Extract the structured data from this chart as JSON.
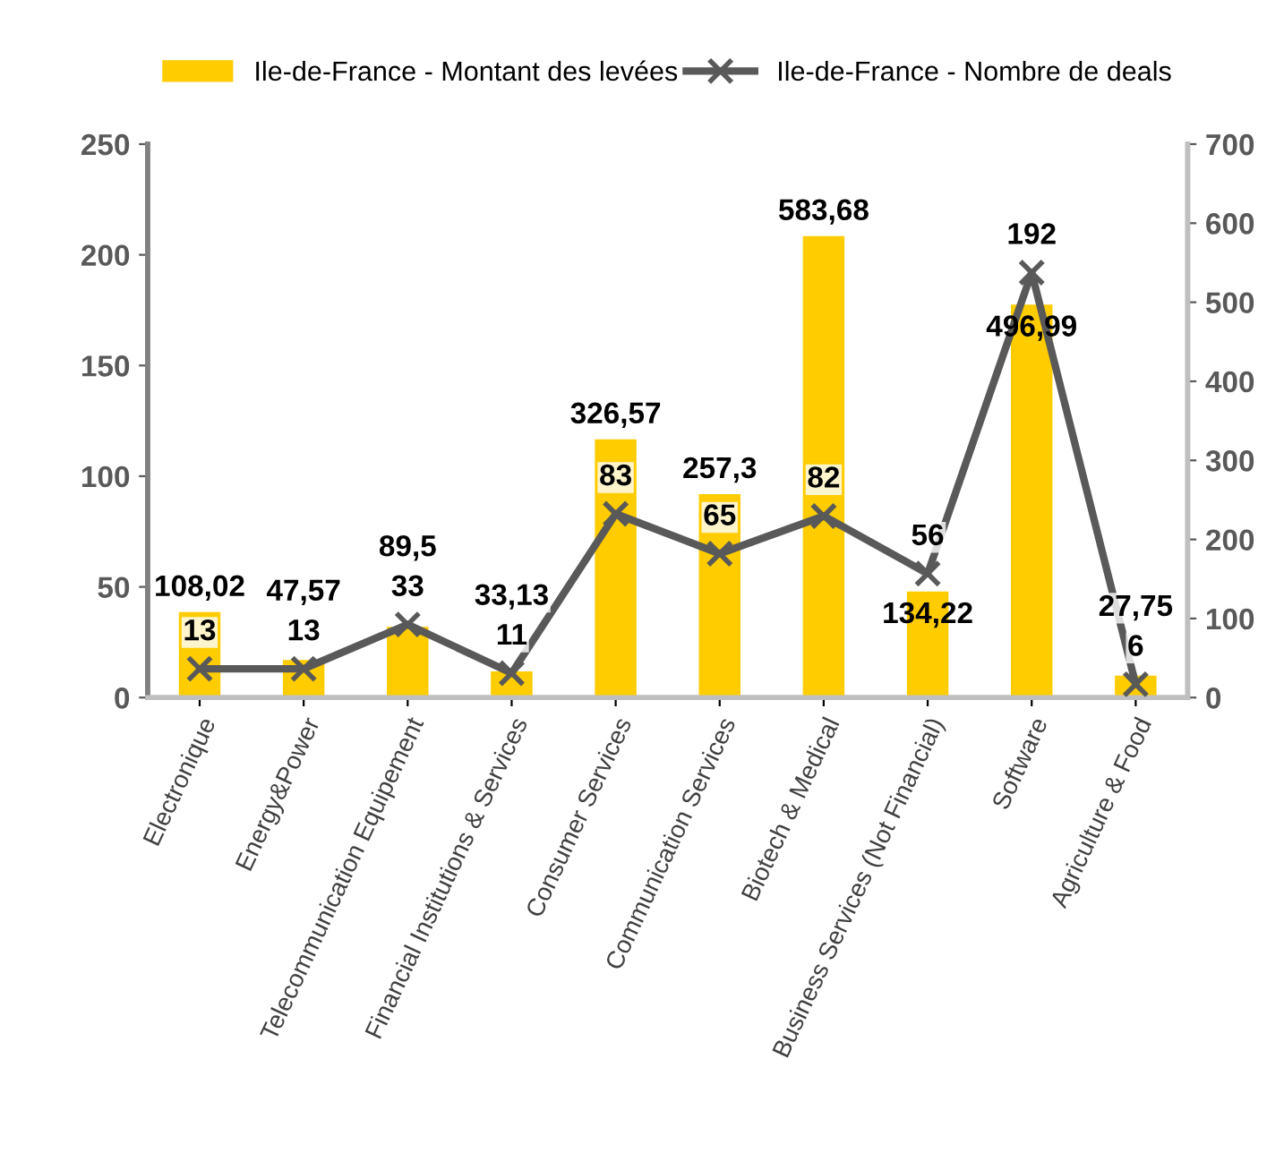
{
  "chart_data": {
    "type": "bar",
    "categories": [
      "Electronique",
      "Energy&Power",
      "Telecommunication Equipement",
      "Financial Institutions & Services",
      "Consumer Services",
      "Communication Services",
      "Biotech & Medical",
      "Business Services (Not Financial)",
      "Software",
      "Agriculture & Food"
    ],
    "series": [
      {
        "name": "Ile-de-France - Montant des levées",
        "axis": "y2",
        "color": "#ffcc00",
        "values": [
          108.02,
          47.57,
          89.5,
          33.13,
          326.57,
          257.3,
          583.68,
          134.22,
          496.99,
          27.75
        ],
        "value_labels": [
          "108,02",
          "47,57",
          "89,5",
          "33,13",
          "326,57",
          "257,3",
          "583,68",
          "134,22",
          "496,99",
          "27,75"
        ]
      },
      {
        "name": "Ile-de-France - Nombre de deals",
        "type": "line",
        "axis": "y",
        "color": "#595959",
        "marker": "cross",
        "values": [
          13,
          13,
          33,
          11,
          83,
          65,
          82,
          56,
          192,
          6
        ],
        "value_labels": [
          "13",
          "13",
          "33",
          "11",
          "83",
          "65",
          "82",
          "56",
          "192",
          "6"
        ]
      }
    ],
    "ylim": [
      0,
      250
    ],
    "yticks": [
      0,
      50,
      100,
      150,
      200,
      250
    ],
    "y2lim": [
      0,
      700
    ],
    "y2ticks": [
      0,
      100,
      200,
      300,
      400,
      500,
      600,
      700
    ],
    "legend": "top",
    "grid": false
  }
}
